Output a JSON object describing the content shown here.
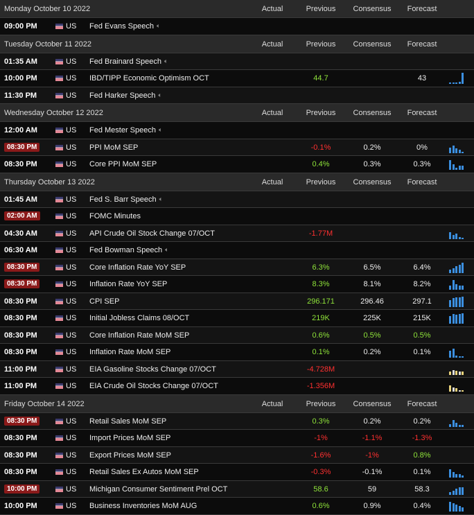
{
  "columns": {
    "actual": "Actual",
    "previous": "Previous",
    "consensus": "Consensus",
    "forecast": "Forecast"
  },
  "country": "US",
  "sections": [
    {
      "date": "Monday October 10 2022",
      "events": [
        {
          "time": "09:00 PM",
          "hl": false,
          "event": "Fed Evans Speech",
          "speech": true,
          "previous": "",
          "prev_color": "",
          "consensus": "",
          "cons_color": "",
          "forecast": "",
          "fore_color": "",
          "chart": []
        }
      ]
    },
    {
      "date": "Tuesday October 11 2022",
      "events": [
        {
          "time": "01:35 AM",
          "hl": false,
          "event": "Fed Brainard Speech",
          "speech": true,
          "previous": "",
          "prev_color": "",
          "consensus": "",
          "cons_color": "",
          "forecast": "",
          "fore_color": "",
          "chart": []
        },
        {
          "time": "10:00 PM",
          "hl": false,
          "event": "IBD/TIPP Economic Optimism OCT",
          "speech": false,
          "previous": "44.7",
          "prev_color": "pos",
          "consensus": "",
          "cons_color": "",
          "forecast": "43",
          "fore_color": "neu",
          "chart": [
            0.15,
            0.15,
            0.15,
            0.2,
            1.0
          ]
        },
        {
          "time": "11:30 PM",
          "hl": false,
          "event": "Fed Harker Speech",
          "speech": true,
          "previous": "",
          "prev_color": "",
          "consensus": "",
          "cons_color": "",
          "forecast": "",
          "fore_color": "",
          "chart": []
        }
      ]
    },
    {
      "date": "Wednesday October 12 2022",
      "events": [
        {
          "time": "12:00 AM",
          "hl": false,
          "event": "Fed Mester Speech",
          "speech": true,
          "previous": "",
          "prev_color": "",
          "consensus": "",
          "cons_color": "",
          "forecast": "",
          "fore_color": "",
          "chart": []
        },
        {
          "time": "08:30 PM",
          "hl": true,
          "event": "PPI MoM SEP",
          "speech": false,
          "previous": "-0.1%",
          "prev_color": "neg",
          "consensus": "0.2%",
          "cons_color": "neu",
          "forecast": "0%",
          "fore_color": "neu",
          "chart": [
            0.5,
            0.7,
            0.45,
            0.3,
            0.15
          ]
        },
        {
          "time": "08:30 PM",
          "hl": false,
          "event": "Core PPI MoM SEP",
          "speech": false,
          "previous": "0.4%",
          "prev_color": "pos",
          "consensus": "0.3%",
          "cons_color": "neu",
          "forecast": "0.3%",
          "fore_color": "neu",
          "chart": [
            0.9,
            0.5,
            0.2,
            0.35,
            0.35
          ]
        }
      ]
    },
    {
      "date": "Thursday October 13 2022",
      "events": [
        {
          "time": "01:45 AM",
          "hl": false,
          "event": "Fed S. Barr Speech",
          "speech": true,
          "previous": "",
          "prev_color": "",
          "consensus": "",
          "cons_color": "",
          "forecast": "",
          "fore_color": "",
          "chart": []
        },
        {
          "time": "02:00 AM",
          "hl": true,
          "event": "FOMC Minutes",
          "speech": false,
          "previous": "",
          "prev_color": "",
          "consensus": "",
          "cons_color": "",
          "forecast": "",
          "fore_color": "",
          "chart": []
        },
        {
          "time": "04:30 AM",
          "hl": false,
          "event": "API Crude Oil Stock Change 07/OCT",
          "speech": false,
          "previous": "-1.77M",
          "prev_color": "neg",
          "consensus": "",
          "cons_color": "",
          "forecast": "",
          "fore_color": "",
          "chart": [
            0.6,
            0.4,
            0.5,
            0.2,
            0.15
          ]
        },
        {
          "time": "06:30 AM",
          "hl": false,
          "event": "Fed Bowman Speech",
          "speech": true,
          "previous": "",
          "prev_color": "",
          "consensus": "",
          "cons_color": "",
          "forecast": "",
          "fore_color": "",
          "chart": []
        },
        {
          "time": "08:30 PM",
          "hl": true,
          "event": "Core Inflation Rate YoY SEP",
          "speech": false,
          "previous": "6.3%",
          "prev_color": "pos",
          "consensus": "6.5%",
          "cons_color": "neu",
          "forecast": "6.4%",
          "fore_color": "neu",
          "chart": [
            0.3,
            0.45,
            0.6,
            0.75,
            0.95
          ]
        },
        {
          "time": "08:30 PM",
          "hl": true,
          "event": "Inflation Rate YoY SEP",
          "speech": false,
          "previous": "8.3%",
          "prev_color": "pos",
          "consensus": "8.1%",
          "cons_color": "neu",
          "forecast": "8.2%",
          "fore_color": "neu",
          "chart": [
            0.4,
            0.85,
            0.5,
            0.35,
            0.35
          ]
        },
        {
          "time": "08:30 PM",
          "hl": false,
          "event": "CPI SEP",
          "speech": false,
          "previous": "296.171",
          "prev_color": "pos",
          "consensus": "296.46",
          "cons_color": "neu",
          "forecast": "297.1",
          "fore_color": "neu",
          "chart": [
            0.6,
            0.8,
            0.9,
            0.9,
            0.95
          ]
        },
        {
          "time": "08:30 PM",
          "hl": false,
          "event": "Initial Jobless Claims 08/OCT",
          "speech": false,
          "previous": "219K",
          "prev_color": "pos",
          "consensus": "225K",
          "cons_color": "neu",
          "forecast": "215K",
          "fore_color": "neu",
          "chart": [
            0.7,
            0.9,
            0.8,
            0.85,
            0.95
          ]
        },
        {
          "time": "08:30 PM",
          "hl": false,
          "event": "Core Inflation Rate MoM SEP",
          "speech": false,
          "previous": "0.6%",
          "prev_color": "pos",
          "consensus": "0.5%",
          "cons_color": "pos",
          "forecast": "0.5%",
          "fore_color": "pos",
          "chart": []
        },
        {
          "time": "08:30 PM",
          "hl": false,
          "event": "Inflation Rate MoM SEP",
          "speech": false,
          "previous": "0.1%",
          "prev_color": "pos",
          "consensus": "0.2%",
          "cons_color": "neu",
          "forecast": "0.1%",
          "fore_color": "neu",
          "chart": [
            0.6,
            0.8,
            0.2,
            0.15,
            0.15
          ]
        },
        {
          "time": "11:00 PM",
          "hl": false,
          "event": "EIA Gasoline Stocks Change 07/OCT",
          "speech": false,
          "previous": "-4.728M",
          "prev_color": "neg",
          "consensus": "",
          "cons_color": "",
          "forecast": "",
          "fore_color": "",
          "chart": [
            0.3,
            0.45,
            0.35,
            0.3,
            0.3
          ],
          "chart_tone": "mixed"
        },
        {
          "time": "11:00 PM",
          "hl": false,
          "event": "EIA Crude Oil Stocks Change 07/OCT",
          "speech": false,
          "previous": "-1.356M",
          "prev_color": "neg",
          "consensus": "",
          "cons_color": "",
          "forecast": "",
          "fore_color": "",
          "chart": [
            0.55,
            0.35,
            0.3,
            0.15,
            0.15
          ],
          "chart_tone": "mixed"
        }
      ]
    },
    {
      "date": "Friday October 14 2022",
      "events": [
        {
          "time": "08:30 PM",
          "hl": true,
          "event": "Retail Sales MoM SEP",
          "speech": false,
          "previous": "0.3%",
          "prev_color": "pos",
          "consensus": "0.2%",
          "cons_color": "neu",
          "forecast": "0.2%",
          "fore_color": "neu",
          "chart": [
            0.25,
            0.6,
            0.35,
            0.2,
            0.2
          ]
        },
        {
          "time": "08:30 PM",
          "hl": false,
          "event": "Import Prices MoM SEP",
          "speech": false,
          "previous": "-1%",
          "prev_color": "neg",
          "consensus": "-1.1%",
          "cons_color": "neg",
          "forecast": "-1.3%",
          "fore_color": "neg",
          "chart": []
        },
        {
          "time": "08:30 PM",
          "hl": false,
          "event": "Export Prices MoM SEP",
          "speech": false,
          "previous": "-1.6%",
          "prev_color": "neg",
          "consensus": "-1%",
          "cons_color": "neg",
          "forecast": "0.8%",
          "fore_color": "pos",
          "chart": []
        },
        {
          "time": "08:30 PM",
          "hl": false,
          "event": "Retail Sales Ex Autos MoM SEP",
          "speech": false,
          "previous": "-0.3%",
          "prev_color": "neg",
          "consensus": "-0.1%",
          "cons_color": "neu",
          "forecast": "0.1%",
          "fore_color": "neu",
          "chart": [
            0.75,
            0.5,
            0.3,
            0.3,
            0.2
          ]
        },
        {
          "time": "10:00 PM",
          "hl": true,
          "event": "Michigan Consumer Sentiment Prel OCT",
          "speech": false,
          "previous": "58.6",
          "prev_color": "pos",
          "consensus": "59",
          "cons_color": "neu",
          "forecast": "58.3",
          "fore_color": "neu",
          "chart": [
            0.25,
            0.4,
            0.55,
            0.7,
            0.7
          ]
        },
        {
          "time": "10:00 PM",
          "hl": false,
          "event": "Business Inventories MoM AUG",
          "speech": false,
          "previous": "0.6%",
          "prev_color": "pos",
          "consensus": "0.9%",
          "cons_color": "neu",
          "forecast": "0.4%",
          "fore_color": "neu",
          "chart": [
            0.9,
            0.75,
            0.6,
            0.5,
            0.35
          ]
        }
      ]
    }
  ]
}
